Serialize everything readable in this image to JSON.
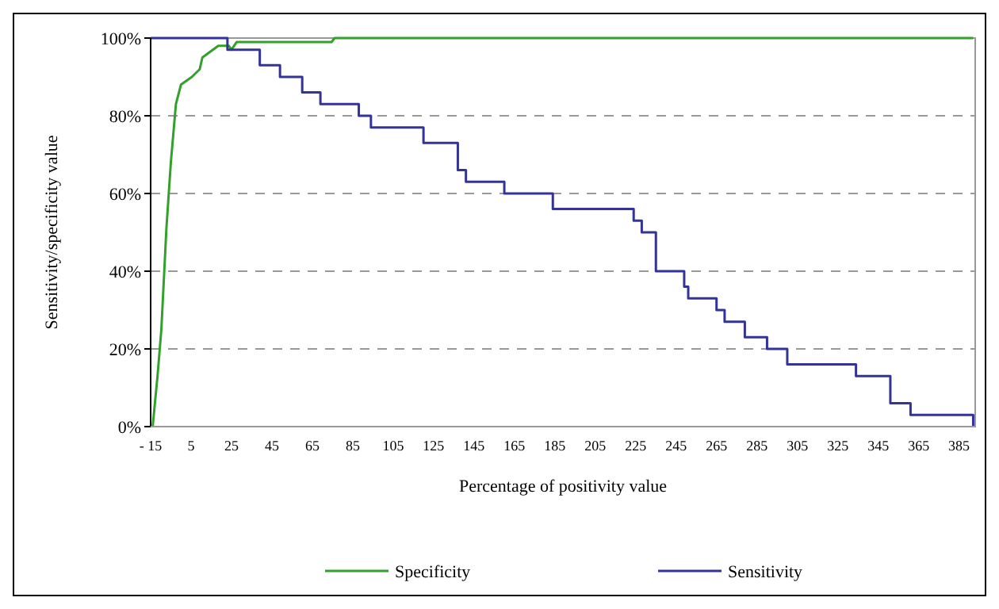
{
  "chart_data": {
    "type": "line",
    "xlabel": "Percentage of positivity value",
    "ylabel": "Sensitivity/specificity value",
    "xlim": [
      -15,
      393
    ],
    "xticks": [
      {
        "value": -15,
        "label": "- 15"
      },
      5,
      25,
      45,
      65,
      85,
      105,
      125,
      145,
      165,
      185,
      205,
      225,
      245,
      265,
      285,
      305,
      325,
      345,
      365,
      385
    ],
    "ylim": [
      0,
      100
    ],
    "yticks": [
      {
        "value": 0,
        "label": "0%"
      },
      {
        "value": 20,
        "label": "20%"
      },
      {
        "value": 40,
        "label": "40%"
      },
      {
        "value": 60,
        "label": "60%"
      },
      {
        "value": 80,
        "label": "80%"
      },
      {
        "value": 100,
        "label": "100%"
      }
    ],
    "grid": "y",
    "legend": "bottom",
    "marker": "none",
    "series": [
      {
        "name": "Specificity",
        "color": "#33a02c",
        "x": [
          -14,
          -11.6,
          -9.7,
          -7.2,
          -5,
          -2.5,
          0,
          5.4,
          9.3,
          10.6,
          15.8,
          18.5,
          23.7,
          25,
          27.6,
          74.6,
          76,
          392
        ],
        "values": [
          0,
          13,
          25,
          51,
          68,
          83,
          88,
          90,
          92,
          95,
          97,
          98,
          98,
          97,
          99,
          99,
          100,
          100
        ]
      },
      {
        "name": "Sensitivity",
        "type": "step",
        "color": "#333399",
        "x": [
          -15,
          23,
          39,
          49,
          60,
          69,
          88,
          94,
          120,
          137,
          141,
          160,
          184,
          224,
          228,
          235,
          249,
          251,
          265,
          269,
          279,
          290,
          300,
          334,
          351,
          361,
          392
        ],
        "values": [
          100,
          97,
          93,
          90,
          86,
          83,
          80,
          77,
          73,
          66,
          63,
          60,
          56,
          53,
          50,
          40,
          36,
          33,
          30,
          27,
          23,
          20,
          16,
          13,
          6,
          3,
          0
        ]
      }
    ]
  }
}
